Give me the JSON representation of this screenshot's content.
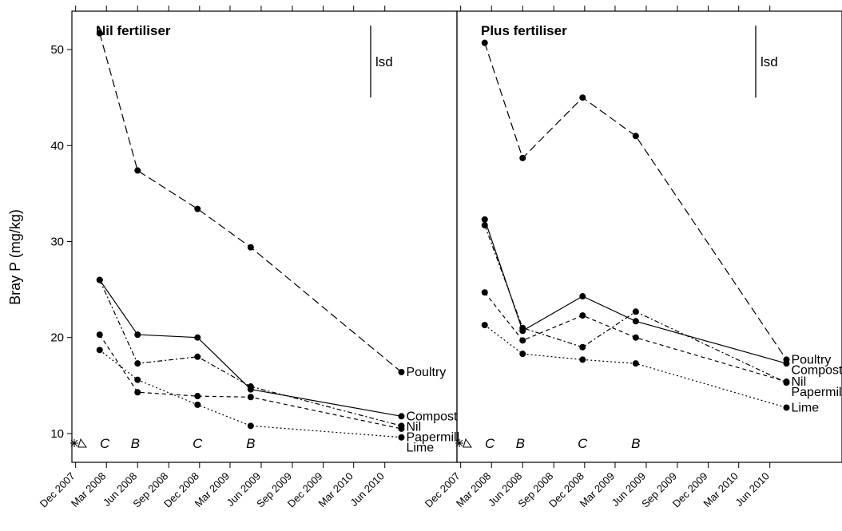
{
  "chart_data": {
    "type": "line",
    "ylabel": "Bray P (mg/kg)",
    "ylim": [
      7,
      54
    ],
    "yticks": [
      10,
      20,
      30,
      40,
      50
    ],
    "xticks": [
      "Dec 2007",
      "Mar 2008",
      "Jun 2008",
      "Sep 2008",
      "Dec 2008",
      "Mar 2009",
      "Jun 2009",
      "Sep 2009",
      "Dec 2009",
      "Mar 2010",
      "Jun 2010"
    ],
    "xlim": [
      "2007-11-20",
      "2010-12-31"
    ],
    "panels": [
      {
        "title": "Nil fertiliser",
        "lsd_label": "lsd",
        "lsd_range": [
          45,
          52.5
        ],
        "annotations": [
          {
            "text": "C",
            "x": "2008-02-25",
            "y": 9
          },
          {
            "text": "B",
            "x": "2008-05-25",
            "y": 9
          },
          {
            "text": "C",
            "x": "2008-11-25",
            "y": 9
          },
          {
            "text": "B",
            "x": "2009-05-01",
            "y": 9
          }
        ],
        "series": [
          {
            "name": "Poultry",
            "dash": "10,5",
            "x": [
              "2008-02-10",
              "2008-06-01",
              "2008-11-25",
              "2009-05-01",
              "2010-07-20"
            ],
            "y": [
              51.7,
              37.4,
              33.4,
              29.4,
              16.4
            ]
          },
          {
            "name": "Compost",
            "dash": "none",
            "x": [
              "2008-02-10",
              "2008-06-01",
              "2008-11-25",
              "2009-05-01",
              "2010-07-20"
            ],
            "y": [
              26.0,
              20.3,
              20.0,
              14.6,
              11.8
            ]
          },
          {
            "name": "Nil",
            "dash": "6,3,2,3",
            "x": [
              "2008-02-10",
              "2008-06-01",
              "2008-11-25",
              "2009-05-01",
              "2010-07-20"
            ],
            "y": [
              26.0,
              17.3,
              18.0,
              14.9,
              10.8
            ]
          },
          {
            "name": "Papermill",
            "dash": "5,4",
            "x": [
              "2008-02-10",
              "2008-06-01",
              "2008-11-25",
              "2009-05-01",
              "2010-07-20"
            ],
            "y": [
              20.3,
              14.3,
              13.9,
              13.8,
              10.5
            ]
          },
          {
            "name": "Lime",
            "dash": "2,3",
            "x": [
              "2008-02-10",
              "2008-06-01",
              "2008-11-25",
              "2009-05-01",
              "2010-07-20"
            ],
            "y": [
              18.7,
              15.6,
              13.0,
              10.8,
              9.6
            ]
          }
        ]
      },
      {
        "title": "Plus fertiliser",
        "lsd_label": "lsd",
        "lsd_range": [
          45,
          52.5
        ],
        "annotations": [
          {
            "text": "C",
            "x": "2008-02-25",
            "y": 9
          },
          {
            "text": "B",
            "x": "2008-05-25",
            "y": 9
          },
          {
            "text": "C",
            "x": "2008-11-25",
            "y": 9
          },
          {
            "text": "B",
            "x": "2009-05-01",
            "y": 9
          }
        ],
        "series": [
          {
            "name": "Poultry",
            "dash": "10,5",
            "x": [
              "2008-02-10",
              "2008-06-01",
              "2008-11-25",
              "2009-05-01",
              "2010-07-20"
            ],
            "y": [
              50.7,
              38.7,
              45.0,
              41.0,
              17.7
            ]
          },
          {
            "name": "Compost",
            "dash": "none",
            "x": [
              "2008-02-10",
              "2008-06-01",
              "2008-11-25",
              "2009-05-01",
              "2010-07-20"
            ],
            "y": [
              32.3,
              20.7,
              24.3,
              21.7,
              17.3
            ]
          },
          {
            "name": "Papermill",
            "dash": "6,3,2,3",
            "x": [
              "2008-02-10",
              "2008-06-01",
              "2008-11-25",
              "2009-05-01",
              "2010-07-20"
            ],
            "y": [
              31.7,
              21.0,
              19.0,
              22.7,
              15.3
            ]
          },
          {
            "name": "Nil",
            "dash": "5,4",
            "x": [
              "2008-02-10",
              "2008-06-01",
              "2008-11-25",
              "2009-05-01",
              "2010-07-20"
            ],
            "y": [
              24.7,
              19.7,
              22.3,
              20.0,
              15.4
            ]
          },
          {
            "name": "Lime",
            "dash": "2,3",
            "x": [
              "2008-02-10",
              "2008-06-01",
              "2008-11-25",
              "2009-05-01",
              "2010-07-20"
            ],
            "y": [
              21.3,
              18.3,
              17.7,
              17.3,
              12.7
            ]
          }
        ]
      }
    ]
  }
}
